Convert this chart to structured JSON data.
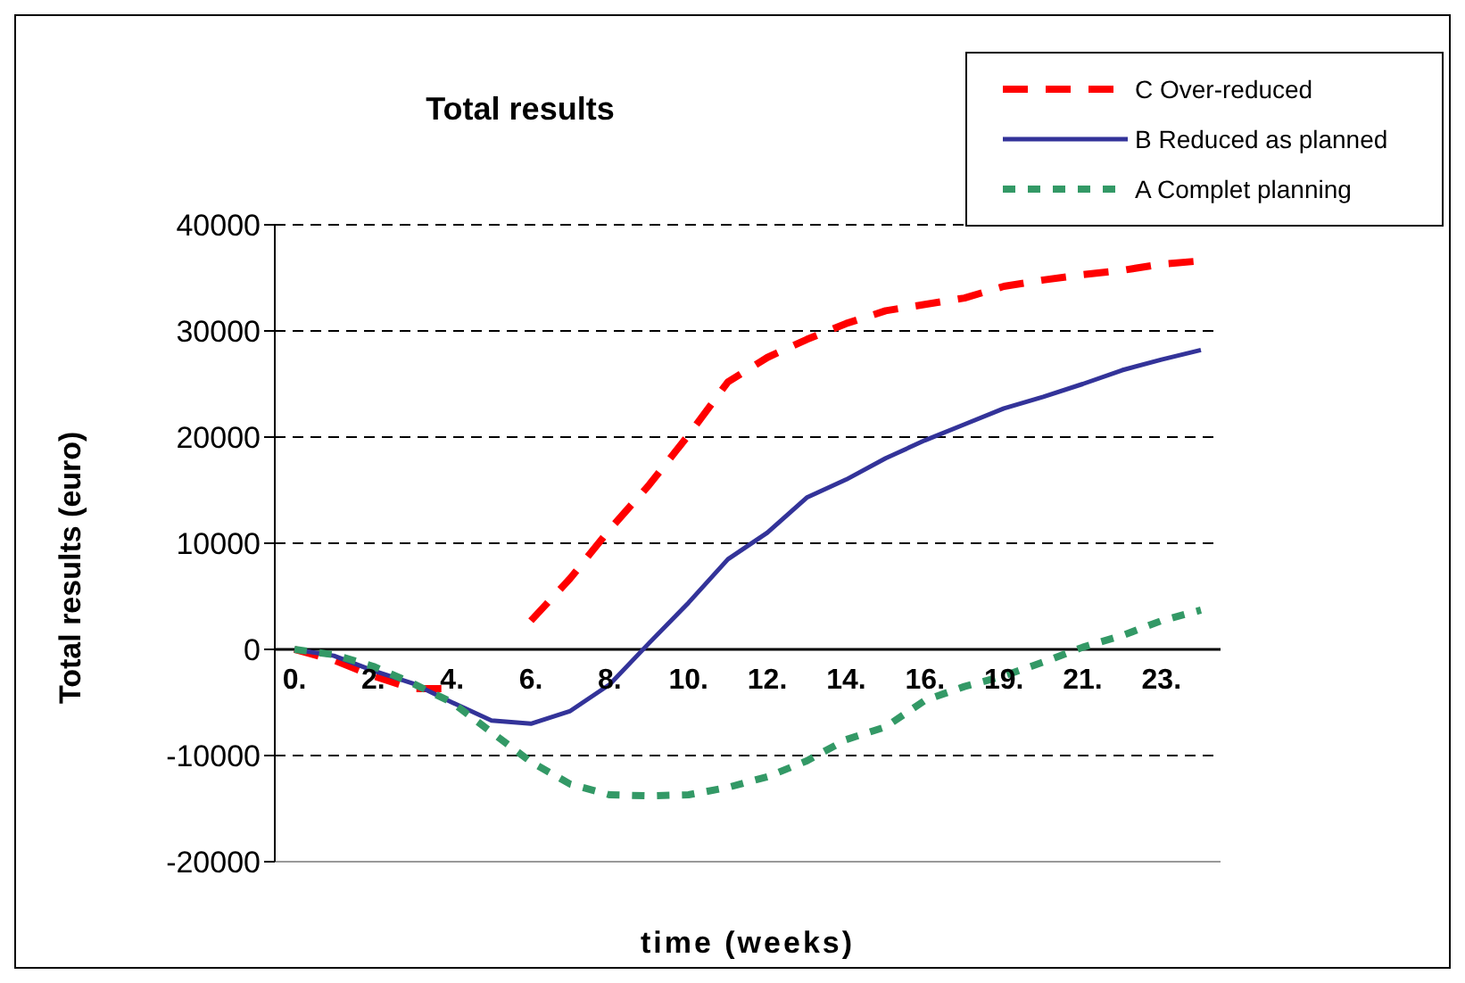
{
  "chart_data": {
    "type": "line",
    "title": "Total results",
    "xlabel": "time  (weeks)",
    "ylabel": "Total results (euro)",
    "categories": [
      "0.",
      null,
      "2.",
      null,
      "4.",
      null,
      "6.",
      null,
      "8.",
      null,
      "10.",
      null,
      "12.",
      null,
      "14.",
      null,
      "16.",
      null,
      "19.",
      null,
      "21.",
      null,
      "23.",
      null
    ],
    "series": [
      {
        "name": "C Over-reduced",
        "color": "#ff0000",
        "line_style": "dashed",
        "values": [
          0,
          -1000,
          -2500,
          -3700,
          -3700,
          null,
          2700,
          6700,
          11300,
          15500,
          20200,
          25200,
          27500,
          29200,
          30700,
          31900,
          32500,
          33100,
          34200,
          34800,
          35300,
          35700,
          36300,
          36600
        ]
      },
      {
        "name": "B Reduced as planned",
        "color": "#333399",
        "line_style": "solid",
        "values": [
          0,
          -600,
          -2000,
          -3200,
          -5000,
          -6700,
          -7000,
          -5800,
          -3300,
          600,
          4400,
          8500,
          11000,
          14300,
          16000,
          18000,
          19700,
          21200,
          22700,
          23800,
          25000,
          26300,
          27300,
          28200
        ]
      },
      {
        "name": "A Complet planning",
        "color": "#339966",
        "line_style": "dotted",
        "values": [
          0,
          -500,
          -1600,
          -3200,
          -5000,
          -7800,
          -10600,
          -12700,
          -13700,
          -13800,
          -13700,
          -13000,
          -12000,
          -10500,
          -8500,
          -7300,
          -4800,
          -3500,
          -2500,
          -1200,
          200,
          1300,
          2700,
          3700
        ]
      }
    ],
    "ylim": [
      -20000,
      40000
    ],
    "yticks": [
      -20000,
      -10000,
      0,
      10000,
      20000,
      30000,
      40000
    ],
    "grid": "y",
    "legend": "top right",
    "marker": "none"
  }
}
